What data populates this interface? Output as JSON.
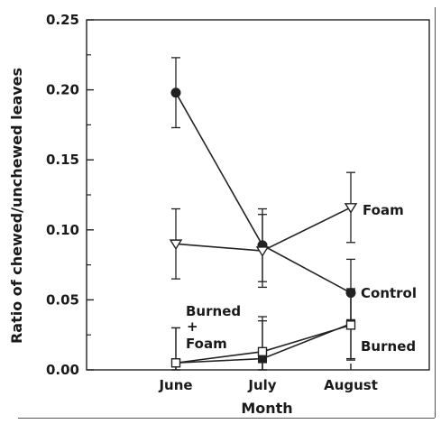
{
  "chart_data": {
    "type": "line",
    "xlabel": "Month",
    "ylabel": "Ratio of chewed/unchewed leaves",
    "categories": [
      "June",
      "July",
      "August"
    ],
    "ylim": [
      0,
      0.25
    ],
    "yticks": [
      "0.00",
      "0.05",
      "0.10",
      "0.15",
      "0.20",
      "0.25"
    ],
    "ytick_values": [
      0,
      0.05,
      0.1,
      0.15,
      0.2,
      0.25
    ],
    "grid": false,
    "legend": "direct labels at right of August points",
    "series": [
      {
        "name": "Control",
        "marker": "filled-circle",
        "values": [
          0.198,
          0.089,
          0.055
        ],
        "err_high": [
          0.223,
          0.115,
          0.079
        ],
        "err_low": [
          0.173,
          0.063,
          0.031
        ]
      },
      {
        "name": "Foam",
        "marker": "open-triangle-down",
        "values": [
          0.09,
          0.085,
          0.116
        ],
        "err_high": [
          0.115,
          0.111,
          0.141
        ],
        "err_low": [
          0.065,
          0.059,
          0.091
        ]
      },
      {
        "name": "Burned",
        "marker": "filled-square",
        "values": [
          0.005,
          0.008,
          0.033
        ],
        "err_high": [
          0.03,
          0.035,
          0.058
        ],
        "err_low": [
          0.0,
          0.0,
          0.008
        ]
      },
      {
        "name": "Burned + Foam",
        "marker": "open-square",
        "values": [
          0.005,
          0.013,
          0.032
        ],
        "err_high": [
          0.03,
          0.038,
          0.057
        ],
        "err_low": [
          0.0,
          0.0,
          0.007
        ]
      }
    ],
    "annotations": {
      "foam": "Foam",
      "control": "Control",
      "burned": "Burned",
      "burned_foam_line1": "Burned",
      "burned_foam_plus": "+",
      "burned_foam_line2": "Foam"
    }
  }
}
